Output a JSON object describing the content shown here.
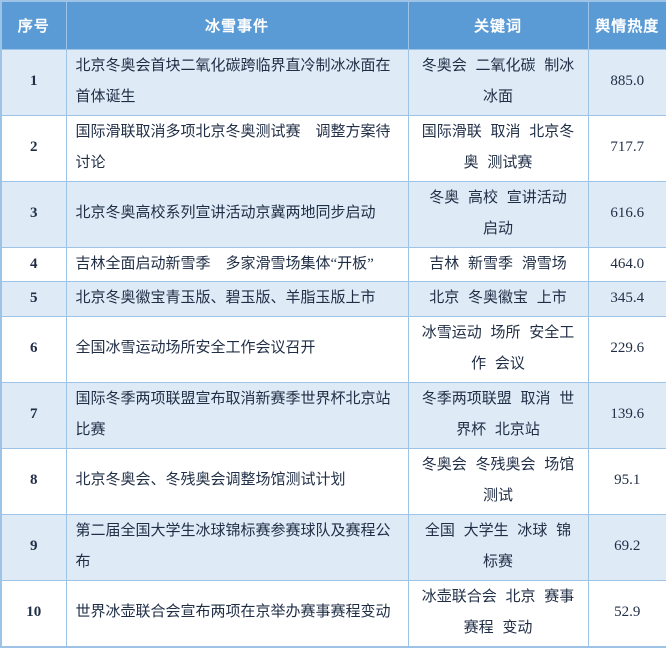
{
  "colors": {
    "header_bg": "#5b9bd5",
    "header_text": "#ffffff",
    "alt_row_bg": "#deebf7",
    "row_bg": "#ffffff",
    "border": "#9dc3e6",
    "text": "#1f2d45"
  },
  "table": {
    "columns": [
      "序号",
      "冰雪事件",
      "关键词",
      "舆情热度"
    ],
    "rows": [
      {
        "index": "1",
        "event": "北京冬奥会首块二氧化碳跨临界直冷制冰冰面在首体诞生",
        "keywords": "冬奥会 二氧化碳 制冰 冰面",
        "heat": "885.0"
      },
      {
        "index": "2",
        "event": "国际滑联取消多项北京冬奥测试赛　调整方案待讨论",
        "keywords": "国际滑联 取消 北京冬奥 测试赛",
        "heat": "717.7"
      },
      {
        "index": "3",
        "event": "北京冬奥高校系列宣讲活动京冀两地同步启动",
        "keywords": "冬奥 高校 宣讲活动 启动",
        "heat": "616.6"
      },
      {
        "index": "4",
        "event": "吉林全面启动新雪季　多家滑雪场集体“开板”",
        "keywords": "吉林 新雪季 滑雪场",
        "heat": "464.0"
      },
      {
        "index": "5",
        "event": "北京冬奥徽宝青玉版、碧玉版、羊脂玉版上市",
        "keywords": "北京 冬奥徽宝 上市",
        "heat": "345.4"
      },
      {
        "index": "6",
        "event": "全国冰雪运动场所安全工作会议召开",
        "keywords": "冰雪运动 场所 安全工作 会议",
        "heat": "229.6"
      },
      {
        "index": "7",
        "event": "国际冬季两项联盟宣布取消新赛季世界杯北京站比赛",
        "keywords": "冬季两项联盟 取消 世界杯 北京站",
        "heat": "139.6"
      },
      {
        "index": "8",
        "event": "北京冬奥会、冬残奥会调整场馆测试计划",
        "keywords": "冬奥会 冬残奥会 场馆测试",
        "heat": "95.1"
      },
      {
        "index": "9",
        "event": "第二届全国大学生冰球锦标赛参赛球队及赛程公布",
        "keywords": "全国 大学生 冰球 锦标赛",
        "heat": "69.2"
      },
      {
        "index": "10",
        "event": "世界冰壶联合会宣布两项在京举办赛事赛程变动",
        "keywords": "冰壶联合会 北京 赛事赛程 变动",
        "heat": "52.9"
      }
    ]
  }
}
